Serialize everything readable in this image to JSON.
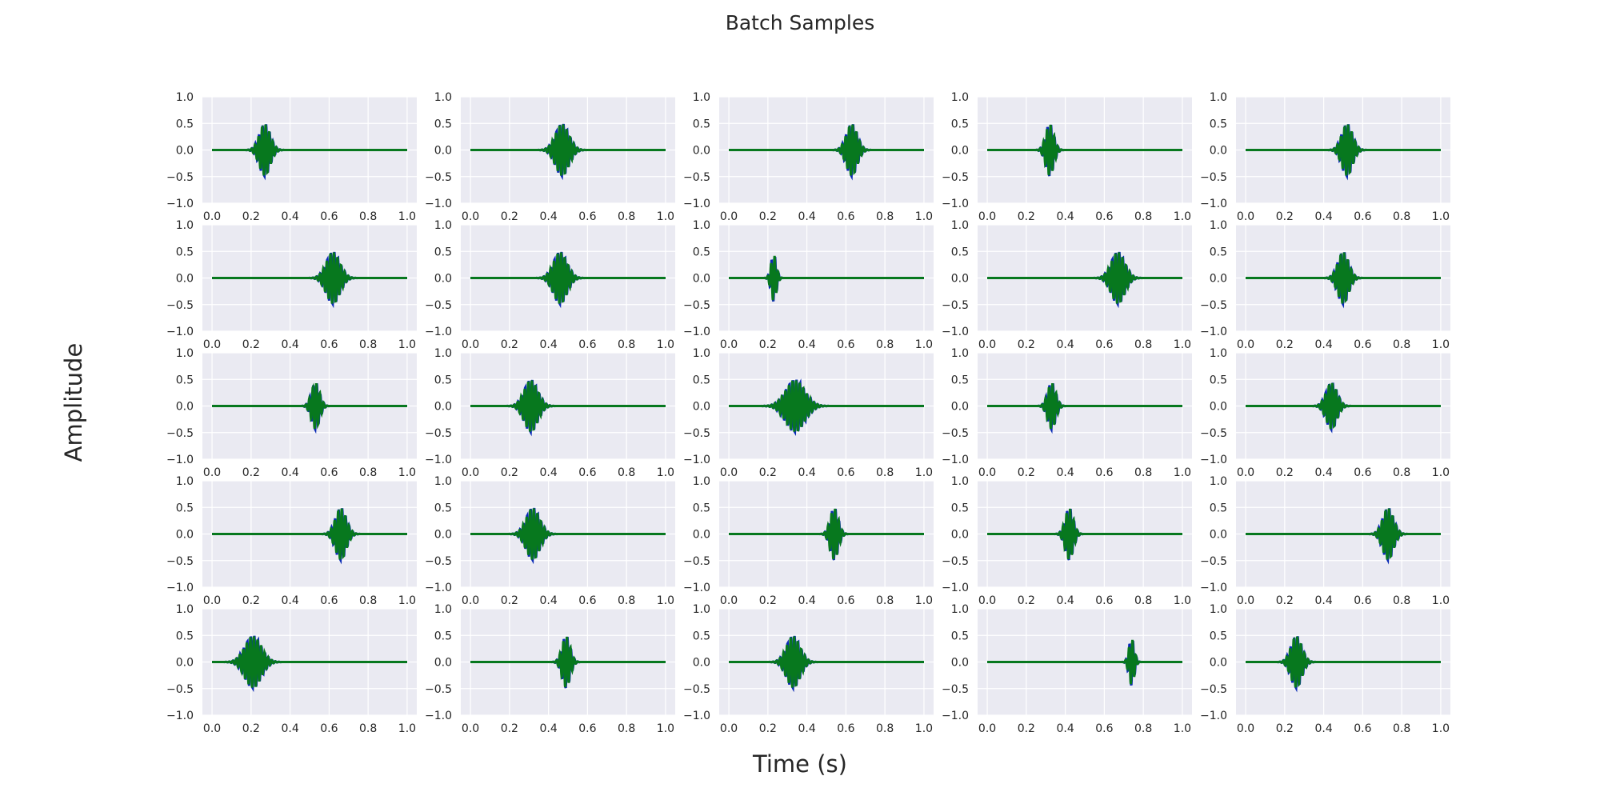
{
  "figure": {
    "title": "Batch Samples",
    "xlabel": "Time (s)",
    "ylabel": "Amplitude"
  },
  "colors": {
    "plot_background": "#eaeaf2",
    "grid": "#ffffff",
    "signal_a": "#0a2bb5",
    "signal_b": "#07781e"
  },
  "chart_data": {
    "type": "line",
    "layout": "5x5 grid of subplots",
    "grid": true,
    "x_ticks": [
      "0.0",
      "0.2",
      "0.4",
      "0.6",
      "0.8",
      "1.0"
    ],
    "y_ticks": [
      "1.0",
      "0.5",
      "0.0",
      "−0.5",
      "−1.0"
    ],
    "xlim": [
      0,
      1
    ],
    "ylim": [
      -1,
      1
    ],
    "series_description": "Two overlapping Gaussian-windowed sinusoid wave packets per subplot (blue and green)",
    "subplots": [
      {
        "center": 0.27,
        "width": 0.04,
        "amplitude": 0.5
      },
      {
        "center": 0.47,
        "width": 0.05,
        "amplitude": 0.5
      },
      {
        "center": 0.63,
        "width": 0.04,
        "amplitude": 0.5
      },
      {
        "center": 0.32,
        "width": 0.03,
        "amplitude": 0.5
      },
      {
        "center": 0.52,
        "width": 0.04,
        "amplitude": 0.5
      },
      {
        "center": 0.62,
        "width": 0.05,
        "amplitude": 0.5
      },
      {
        "center": 0.46,
        "width": 0.05,
        "amplitude": 0.5
      },
      {
        "center": 0.23,
        "width": 0.02,
        "amplitude": 0.45
      },
      {
        "center": 0.67,
        "width": 0.05,
        "amplitude": 0.5
      },
      {
        "center": 0.5,
        "width": 0.04,
        "amplitude": 0.5
      },
      {
        "center": 0.53,
        "width": 0.03,
        "amplitude": 0.45
      },
      {
        "center": 0.31,
        "width": 0.05,
        "amplitude": 0.5
      },
      {
        "center": 0.34,
        "width": 0.07,
        "amplitude": 0.5
      },
      {
        "center": 0.33,
        "width": 0.03,
        "amplitude": 0.45
      },
      {
        "center": 0.44,
        "width": 0.04,
        "amplitude": 0.45
      },
      {
        "center": 0.66,
        "width": 0.04,
        "amplitude": 0.5
      },
      {
        "center": 0.32,
        "width": 0.05,
        "amplitude": 0.5
      },
      {
        "center": 0.54,
        "width": 0.03,
        "amplitude": 0.5
      },
      {
        "center": 0.42,
        "width": 0.03,
        "amplitude": 0.5
      },
      {
        "center": 0.73,
        "width": 0.04,
        "amplitude": 0.5
      },
      {
        "center": 0.21,
        "width": 0.06,
        "amplitude": 0.5
      },
      {
        "center": 0.49,
        "width": 0.03,
        "amplitude": 0.5
      },
      {
        "center": 0.33,
        "width": 0.05,
        "amplitude": 0.5
      },
      {
        "center": 0.74,
        "width": 0.02,
        "amplitude": 0.45
      },
      {
        "center": 0.26,
        "width": 0.04,
        "amplitude": 0.5
      }
    ]
  }
}
